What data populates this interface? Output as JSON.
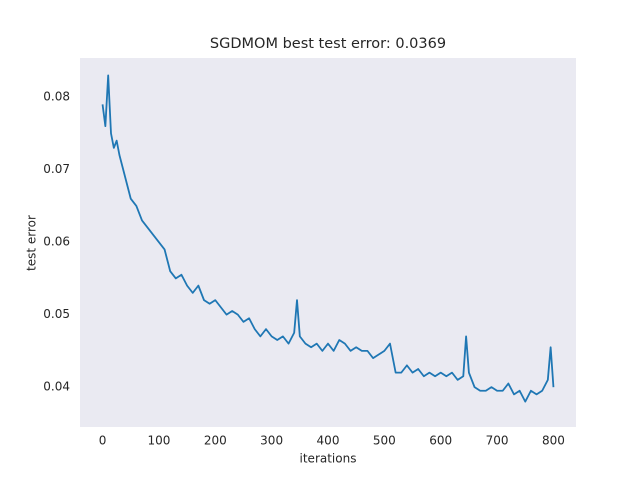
{
  "chart_data": {
    "type": "line",
    "title": "SGDMOM best test error: 0.0369",
    "xlabel": "iterations",
    "ylabel": "test error",
    "x": [
      0,
      5,
      10,
      15,
      20,
      25,
      30,
      40,
      50,
      60,
      70,
      80,
      90,
      100,
      110,
      120,
      130,
      140,
      150,
      160,
      170,
      180,
      190,
      200,
      210,
      220,
      230,
      240,
      250,
      260,
      270,
      280,
      290,
      300,
      310,
      320,
      330,
      340,
      345,
      350,
      360,
      370,
      380,
      390,
      400,
      410,
      420,
      430,
      440,
      450,
      460,
      470,
      480,
      490,
      500,
      510,
      520,
      530,
      540,
      550,
      560,
      570,
      580,
      590,
      600,
      610,
      620,
      630,
      640,
      645,
      650,
      660,
      670,
      680,
      690,
      700,
      710,
      720,
      730,
      740,
      750,
      760,
      770,
      780,
      790,
      795,
      800
    ],
    "series": [
      {
        "name": "test error",
        "color": "#1f77b4",
        "values": [
          0.079,
          0.076,
          0.083,
          0.075,
          0.073,
          0.074,
          0.072,
          0.069,
          0.066,
          0.065,
          0.063,
          0.062,
          0.061,
          0.06,
          0.059,
          0.056,
          0.055,
          0.0555,
          0.054,
          0.053,
          0.054,
          0.052,
          0.0515,
          0.052,
          0.051,
          0.05,
          0.0505,
          0.05,
          0.049,
          0.0495,
          0.048,
          0.047,
          0.048,
          0.047,
          0.0465,
          0.047,
          0.046,
          0.0475,
          0.052,
          0.047,
          0.046,
          0.0455,
          0.046,
          0.045,
          0.046,
          0.045,
          0.0465,
          0.046,
          0.045,
          0.0455,
          0.045,
          0.045,
          0.044,
          0.0445,
          0.045,
          0.046,
          0.042,
          0.042,
          0.043,
          0.042,
          0.0425,
          0.0415,
          0.042,
          0.0415,
          0.042,
          0.0415,
          0.042,
          0.041,
          0.0415,
          0.047,
          0.042,
          0.04,
          0.0395,
          0.0395,
          0.04,
          0.0395,
          0.0395,
          0.0405,
          0.039,
          0.0395,
          0.038,
          0.0395,
          0.039,
          0.0395,
          0.041,
          0.0455,
          0.04
        ]
      }
    ],
    "xlim": [
      -40,
      840
    ],
    "ylim": [
      0.0345,
      0.0854
    ],
    "xticks": [
      0,
      100,
      200,
      300,
      400,
      500,
      600,
      700,
      800
    ],
    "yticks": [
      0.04,
      0.05,
      0.06,
      0.07,
      0.08
    ],
    "grid": false,
    "background": "#eaeaf2"
  }
}
